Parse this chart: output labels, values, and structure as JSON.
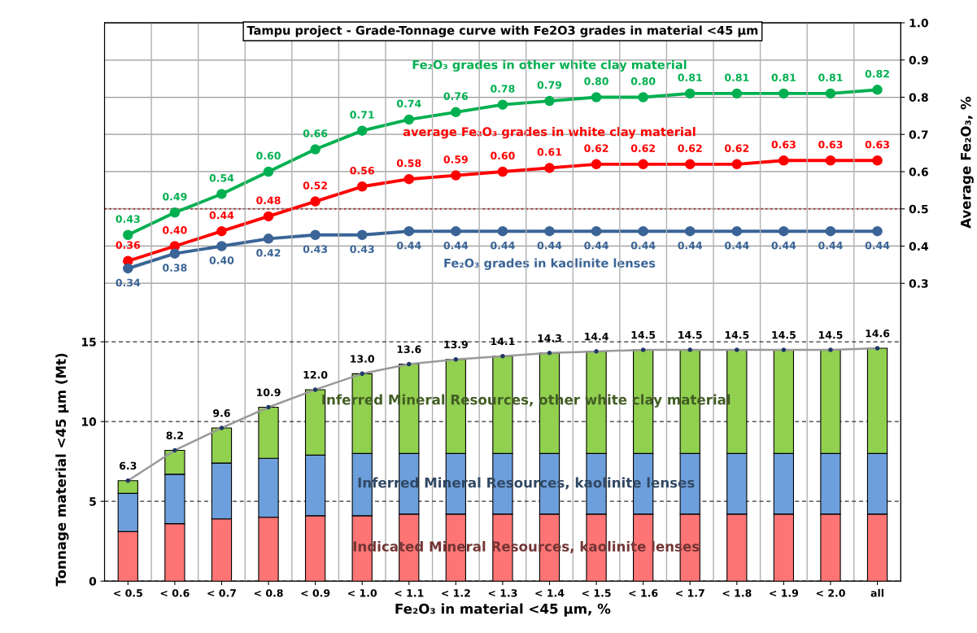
{
  "chart_data": {
    "type": "bar",
    "title": "Tampu project - Grade-Tonnage curve with Fe2O3 grades in material <45 µm",
    "xlabel": "Fe₂O₃ in material <45 µm, %",
    "ylabel": "Tonnage material <45 µm (Mt)",
    "y2label": "Average Fe₂O₃, %",
    "categories": [
      "< 0.5",
      "< 0.6",
      "< 0.7",
      "< 0.8",
      "< 0.9",
      "< 1.0",
      "< 1.1",
      "< 1.2",
      "< 1.3",
      "< 1.4",
      "< 1.5",
      "< 1.6",
      "< 1.7",
      "< 1.8",
      "< 1.9",
      "< 2.0",
      "all"
    ],
    "stacked": true,
    "ylim": [
      0,
      35
    ],
    "yticks": [
      0,
      5,
      10,
      15
    ],
    "y2lim": [
      -0.5,
      1.0
    ],
    "y2ticks": [
      0.3,
      0.4,
      0.5,
      0.6,
      0.7,
      0.8,
      0.9,
      {
        "value": 1.0,
        "label": "1.0"
      }
    ],
    "grid": true,
    "marker": "circle",
    "line_style": "solid",
    "totals": [
      "6.3",
      "8.2",
      "9.6",
      "10.9",
      "12.0",
      "13.0",
      "13.6",
      "13.9",
      "14.1",
      "14.3",
      "14.4",
      "14.5",
      "14.5",
      "14.5",
      "14.5",
      "14.5",
      "14.6"
    ],
    "ref_lines": [
      {
        "axis": "y2",
        "value": 0.5,
        "color": "#a03030",
        "line_style": "dotted"
      }
    ],
    "series": [
      {
        "name": "Indicated Mineral Resources, kaolinite lenses",
        "color": "#ff7575",
        "values": [
          3.1,
          3.6,
          3.9,
          4.0,
          4.1,
          4.1,
          4.2,
          4.2,
          4.2,
          4.2,
          4.2,
          4.2,
          4.2,
          4.2,
          4.2,
          4.2,
          4.2
        ]
      },
      {
        "name": "Inferred Mineral Resources, kaolinite lenses",
        "color": "#6d9fdc",
        "values": [
          2.4,
          3.1,
          3.5,
          3.7,
          3.8,
          3.9,
          3.8,
          3.8,
          3.8,
          3.8,
          3.8,
          3.8,
          3.8,
          3.8,
          3.8,
          3.8,
          3.8
        ]
      },
      {
        "name": "Inferred Mineral Resources, other white clay material",
        "color": "#92d050",
        "values": [
          0.8,
          1.5,
          2.2,
          3.2,
          4.1,
          5.0,
          5.6,
          5.9,
          6.1,
          6.3,
          6.4,
          6.5,
          6.5,
          6.5,
          6.5,
          6.5,
          6.6
        ]
      },
      {
        "type": "line",
        "color": "#999999",
        "values": [
          6.3,
          8.2,
          9.6,
          10.9,
          12.0,
          13.0,
          13.6,
          13.9,
          14.1,
          14.3,
          14.4,
          14.5,
          14.5,
          14.5,
          14.5,
          14.5,
          14.6
        ]
      },
      {
        "type": "line",
        "axis": "y2",
        "name": "Fe₂O₃ grades in other white clay material",
        "color": "#00b050",
        "values": [
          0.43,
          0.49,
          0.54,
          0.6,
          0.66,
          0.71,
          0.74,
          0.76,
          0.78,
          0.79,
          0.8,
          0.8,
          0.81,
          0.81,
          0.81,
          0.81,
          0.82
        ],
        "value_labels": [
          "0.43",
          "0.49",
          "0.54",
          "0.60",
          "0.66",
          "0.71",
          "0.74",
          "0.76",
          "0.78",
          "0.79",
          "0.80",
          "0.80",
          "0.81",
          "0.81",
          "0.81",
          "0.81",
          "0.82"
        ]
      },
      {
        "type": "line",
        "axis": "y2",
        "name": "average Fe₂O₃ grades in white clay material",
        "color": "#ff0000",
        "values": [
          0.36,
          0.4,
          0.44,
          0.48,
          0.52,
          0.56,
          0.58,
          0.59,
          0.6,
          0.61,
          0.62,
          0.62,
          0.62,
          0.62,
          0.63,
          0.63,
          0.63
        ],
        "value_labels": [
          "0.36",
          "0.40",
          "0.44",
          "0.48",
          "0.52",
          "0.56",
          "0.58",
          "0.59",
          "0.60",
          "0.61",
          "0.62",
          "0.62",
          "0.62",
          "0.62",
          "0.63",
          "0.63",
          "0.63"
        ]
      },
      {
        "type": "line",
        "axis": "y2",
        "name": "Fe₂O₃ grades in kaolinite lenses",
        "color": "#3a6496",
        "values": [
          0.34,
          0.38,
          0.4,
          0.42,
          0.43,
          0.43,
          0.44,
          0.44,
          0.44,
          0.44,
          0.44,
          0.44,
          0.44,
          0.44,
          0.44,
          0.44,
          0.44
        ],
        "value_labels": [
          "0.34",
          "0.38",
          "0.40",
          "0.42",
          "0.43",
          "0.43",
          "0.44",
          "0.44",
          "0.44",
          "0.44",
          "0.44",
          "0.44",
          "0.44",
          "0.44",
          "0.44",
          "0.44",
          "0.44"
        ]
      }
    ]
  }
}
